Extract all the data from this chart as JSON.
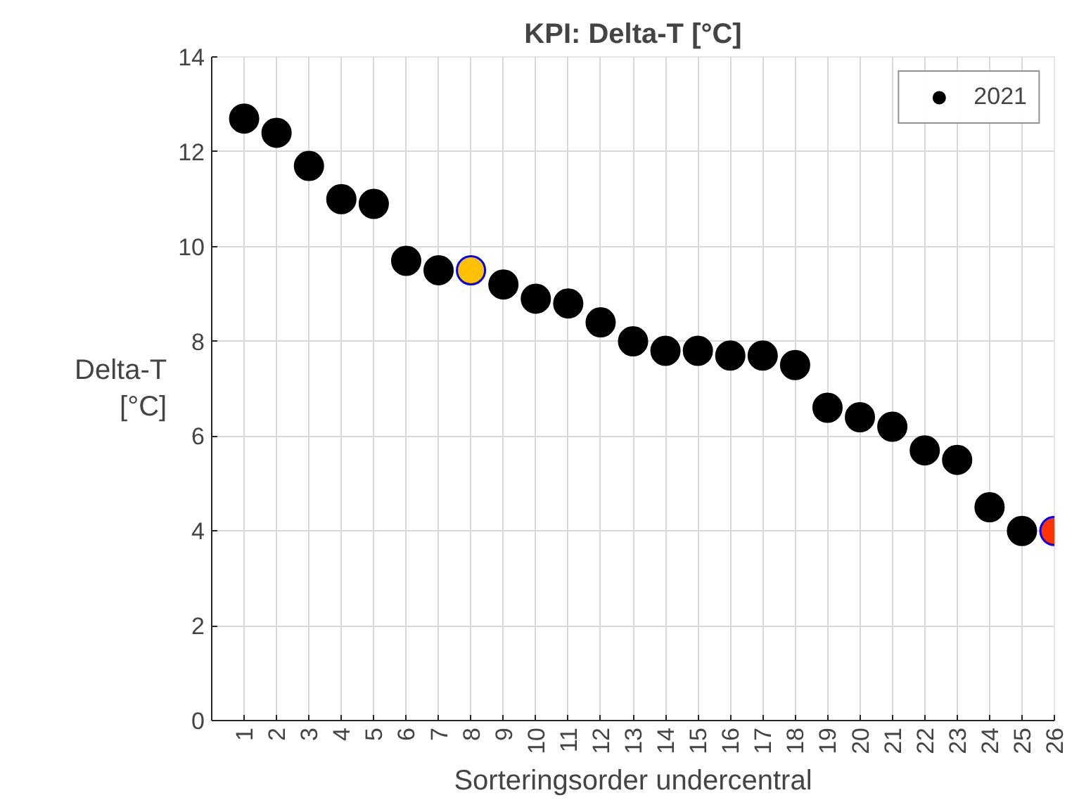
{
  "chart_data": {
    "type": "scatter",
    "title": "KPI: Delta-T [°C]",
    "xlabel": "Sorteringsorder undercentral",
    "ylabel": "Delta-T\n[°C]",
    "x": [
      1,
      2,
      3,
      4,
      5,
      6,
      7,
      8,
      9,
      10,
      11,
      12,
      13,
      14,
      15,
      16,
      17,
      18,
      19,
      20,
      21,
      22,
      23,
      24,
      25,
      26
    ],
    "xlim": [
      0,
      26
    ],
    "xticks": [
      1,
      2,
      3,
      4,
      5,
      6,
      7,
      8,
      9,
      10,
      11,
      12,
      13,
      14,
      15,
      16,
      17,
      18,
      19,
      20,
      21,
      22,
      23,
      24,
      25,
      26
    ],
    "ylim": [
      0,
      14
    ],
    "yticks": [
      0,
      2,
      4,
      6,
      8,
      10,
      12,
      14
    ],
    "series": [
      {
        "name": "2021",
        "color": "#000000",
        "values": [
          12.7,
          12.4,
          11.7,
          11.0,
          10.9,
          9.7,
          9.5,
          9.5,
          9.2,
          8.9,
          8.8,
          8.4,
          8.0,
          7.8,
          7.8,
          7.7,
          7.7,
          7.5,
          6.6,
          6.4,
          6.2,
          5.7,
          5.5,
          4.5,
          4.0,
          4.0
        ],
        "colors": [
          "#000000",
          "#000000",
          "#000000",
          "#000000",
          "#000000",
          "#000000",
          "#000000",
          "#ffc000",
          "#000000",
          "#000000",
          "#000000",
          "#000000",
          "#000000",
          "#000000",
          "#000000",
          "#000000",
          "#000000",
          "#000000",
          "#000000",
          "#000000",
          "#000000",
          "#000000",
          "#000000",
          "#000000",
          "#000000",
          "#ff3300"
        ]
      }
    ],
    "marker": "circle",
    "grid": true,
    "legend": "top right"
  }
}
